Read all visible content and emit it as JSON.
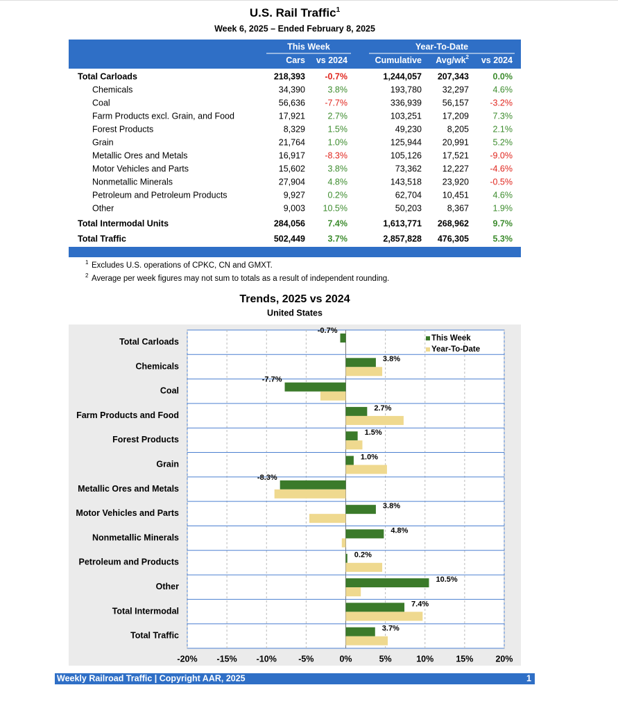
{
  "header": {
    "title": "U.S. Rail Traffic",
    "title_note": "1",
    "subtitle": "Week 6, 2025 – Ended February 8, 2025"
  },
  "table": {
    "group_headers": [
      "This Week",
      "Year-To-Date"
    ],
    "columns": [
      "Cars",
      "vs 2024",
      "Cumulative",
      "Avg/wk",
      "vs 2024"
    ],
    "avg_note": "2",
    "rows": [
      [
        "Total Carloads",
        "218,393",
        "-0.7%",
        "1,244,057",
        "207,343",
        "0.0%"
      ],
      [
        "Chemicals",
        "34,390",
        "3.8%",
        "193,780",
        "32,297",
        "4.6%"
      ],
      [
        "Coal",
        "56,636",
        "-7.7%",
        "336,939",
        "56,157",
        "-3.2%"
      ],
      [
        "Farm Products excl. Grain, and Food",
        "17,921",
        "2.7%",
        "103,251",
        "17,209",
        "7.3%"
      ],
      [
        "Forest Products",
        "8,329",
        "1.5%",
        "49,230",
        "8,205",
        "2.1%"
      ],
      [
        "Grain",
        "21,764",
        "1.0%",
        "125,944",
        "20,991",
        "5.2%"
      ],
      [
        "Metallic Ores and Metals",
        "16,917",
        "-8.3%",
        "105,126",
        "17,521",
        "-9.0%"
      ],
      [
        "Motor Vehicles and Parts",
        "15,602",
        "3.8%",
        "73,362",
        "12,227",
        "-4.6%"
      ],
      [
        "Nonmetallic Minerals",
        "27,904",
        "4.8%",
        "143,518",
        "23,920",
        "-0.5%"
      ],
      [
        "Petroleum and Petroleum Products",
        "9,927",
        "0.2%",
        "62,704",
        "10,451",
        "4.6%"
      ],
      [
        "Other",
        "9,003",
        "10.5%",
        "50,203",
        "8,367",
        "1.9%"
      ],
      [
        "Total Intermodal Units",
        "284,056",
        "7.4%",
        "1,613,771",
        "268,962",
        "9.7%"
      ],
      [
        "Total Traffic",
        "502,449",
        "3.7%",
        "2,857,828",
        "476,305",
        "5.3%"
      ]
    ]
  },
  "footnotes": [
    {
      "mark": "1",
      "text": "Excludes U.S. operations of CPKC, CN and GMXT."
    },
    {
      "mark": "2",
      "text": "Average per week figures may not sum to totals as a result of independent rounding."
    }
  ],
  "chart_data": {
    "type": "hbar",
    "title": "Trends, 2025 vs 2024",
    "subtitle": "United States",
    "categories": [
      "Total Carloads",
      "Chemicals",
      "Coal",
      "Farm Products and Food",
      "Forest Products",
      "Grain",
      "Metallic Ores and Metals",
      "Motor Vehicles and Parts",
      "Nonmetallic Minerals",
      "Petroleum and Products",
      "Other",
      "Total Intermodal",
      "Total Traffic"
    ],
    "series": [
      {
        "name": "This Week",
        "color": "#3b7a2a",
        "values": [
          -0.7,
          3.8,
          -7.7,
          2.7,
          1.5,
          1.0,
          -8.3,
          3.8,
          4.8,
          0.2,
          10.5,
          7.4,
          3.7
        ],
        "value_labels": [
          "-0.7%",
          "3.8%",
          "-7.7%",
          "2.7%",
          "1.5%",
          "1.0%",
          "-8.3%",
          "3.8%",
          "4.8%",
          "0.2%",
          "10.5%",
          "7.4%",
          "3.7%"
        ]
      },
      {
        "name": "Year-To-Date",
        "color": "#efd98f",
        "values": [
          0.0,
          4.6,
          -3.2,
          7.3,
          2.1,
          5.2,
          -9.0,
          -4.6,
          -0.5,
          4.6,
          1.9,
          9.7,
          5.3
        ]
      }
    ],
    "xlim": [
      -20,
      20
    ],
    "xticks": [
      {
        "value": -20,
        "label": "-20%"
      },
      {
        "value": -15,
        "label": "-15%"
      },
      {
        "value": -10,
        "label": "-10%"
      },
      {
        "value": -5,
        "label": "-5%"
      },
      {
        "value": 0,
        "label": "0%"
      },
      {
        "value": 5,
        "label": "5%"
      },
      {
        "value": 10,
        "label": "10%"
      },
      {
        "value": 15,
        "label": "15%"
      },
      {
        "value": 20,
        "label": "20%"
      }
    ],
    "grid": true,
    "legend": "top-right"
  },
  "footer": {
    "text": "Weekly Railroad Traffic | Copyright AAR, 2025",
    "page": "1"
  }
}
